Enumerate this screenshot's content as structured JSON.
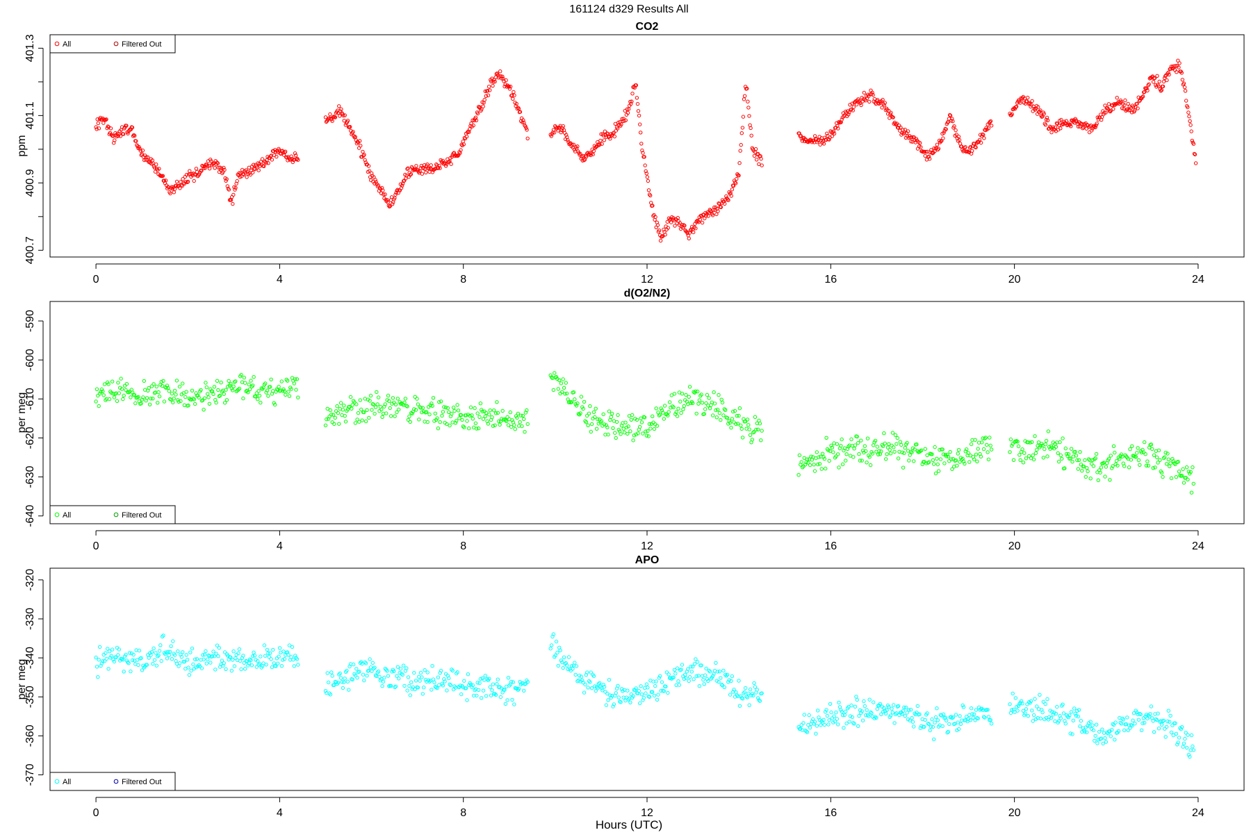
{
  "figure": {
    "title": "161124   d329   Results All",
    "xlabel": "Hours (UTC)",
    "x_ticks": [
      "0",
      "4",
      "8",
      "12",
      "16",
      "20",
      "24"
    ]
  },
  "chart_data": [
    {
      "type": "scatter",
      "title": "CO2",
      "ylabel": "ppm",
      "xlim": [
        -1,
        25
      ],
      "ylim": [
        400.68,
        401.34
      ],
      "y_ticks": [
        400.7,
        400.9,
        401.1,
        401.3
      ],
      "y_tick_labels": [
        "400.7",
        "400.9",
        "401.1",
        "401.3"
      ],
      "y_minor_ticks": [
        400.8,
        401.0,
        401.2
      ],
      "marker_color": "#ff0000",
      "legend_position": "top-left",
      "legend": [
        {
          "label": "All",
          "color": "#ff0000"
        },
        {
          "label": "Filtered Out",
          "color": "#b00000"
        }
      ],
      "series": [
        {
          "segment": "0-4.4 h",
          "x": [
            0.0,
            0.2,
            0.4,
            0.6,
            0.8,
            1.0,
            1.2,
            1.4,
            1.6,
            1.8,
            2.0,
            2.2,
            2.4,
            2.6,
            2.8,
            2.95,
            3.1,
            3.4,
            3.7,
            4.0,
            4.2,
            4.4
          ],
          "y": [
            401.07,
            401.09,
            401.03,
            401.06,
            401.05,
            400.98,
            400.96,
            400.93,
            400.88,
            400.89,
            400.92,
            400.93,
            400.95,
            400.96,
            400.93,
            400.84,
            400.92,
            400.94,
            400.96,
            401.0,
            400.97,
            400.97
          ]
        },
        {
          "segment": "5.0-9.4 h",
          "x": [
            5.0,
            5.3,
            5.5,
            5.8,
            6.0,
            6.2,
            6.4,
            6.6,
            6.8,
            7.0,
            7.3,
            7.6,
            7.9,
            8.1,
            8.4,
            8.6,
            8.8,
            9.0,
            9.2,
            9.4
          ],
          "y": [
            401.08,
            401.11,
            401.07,
            400.99,
            400.92,
            400.88,
            400.84,
            400.88,
            400.93,
            400.94,
            400.94,
            400.96,
            400.99,
            401.05,
            401.13,
            401.2,
            401.22,
            401.18,
            401.12,
            401.04
          ]
        },
        {
          "segment": "9.9-14.5 h",
          "x": [
            9.9,
            10.1,
            10.3,
            10.6,
            10.8,
            11.0,
            11.2,
            11.4,
            11.6,
            11.75,
            11.9,
            12.1,
            12.3,
            12.5,
            12.7,
            12.9,
            13.2,
            13.5,
            13.8,
            14.0,
            14.15,
            14.3,
            14.5
          ],
          "y": [
            401.04,
            401.07,
            401.02,
            400.98,
            400.99,
            401.03,
            401.04,
            401.07,
            401.12,
            401.2,
            401.0,
            400.83,
            400.74,
            400.79,
            400.78,
            400.75,
            400.8,
            400.82,
            400.86,
            400.93,
            401.2,
            401.0,
            400.96
          ]
        },
        {
          "segment": "15.3-19.5 h",
          "x": [
            15.3,
            15.6,
            16.0,
            16.3,
            16.6,
            16.9,
            17.2,
            17.5,
            17.8,
            18.1,
            18.4,
            18.6,
            18.8,
            19.0,
            19.3,
            19.5
          ],
          "y": [
            401.04,
            401.02,
            401.04,
            401.1,
            401.14,
            401.16,
            401.12,
            401.06,
            401.03,
            400.98,
            401.02,
            401.1,
            401.02,
            400.99,
            401.04,
            401.08
          ]
        },
        {
          "segment": "19.9-23.9 h",
          "x": [
            19.9,
            20.2,
            20.5,
            20.8,
            21.0,
            21.3,
            21.6,
            21.8,
            22.0,
            22.3,
            22.6,
            22.8,
            23.0,
            23.2,
            23.4,
            23.6,
            23.8,
            23.95
          ],
          "y": [
            401.11,
            401.15,
            401.12,
            401.06,
            401.07,
            401.08,
            401.06,
            401.08,
            401.12,
            401.14,
            401.12,
            401.16,
            401.22,
            401.18,
            401.24,
            401.25,
            401.1,
            400.96
          ]
        }
      ]
    },
    {
      "type": "scatter",
      "title": "d(O2/N2)",
      "ylabel": "per meg",
      "xlim": [
        -1,
        25
      ],
      "ylim": [
        -642,
        -585
      ],
      "y_ticks": [
        -640,
        -630,
        -620,
        -610,
        -600,
        -590
      ],
      "y_tick_labels": [
        "-640",
        "-630",
        "-620",
        "-610",
        "-600",
        "-590"
      ],
      "marker_color": "#00ff00",
      "legend_position": "bottom-left",
      "legend": [
        {
          "label": "All",
          "color": "#00ff00"
        },
        {
          "label": "Filtered Out",
          "color": "#00a000"
        }
      ],
      "series": [
        {
          "segment": "0-4.4 h",
          "x": [
            0.0,
            0.5,
            1.0,
            1.5,
            2.0,
            2.5,
            3.0,
            3.5,
            4.0,
            4.4
          ],
          "y": [
            -609,
            -608,
            -609,
            -607,
            -610,
            -609,
            -607,
            -608,
            -607,
            -608
          ]
        },
        {
          "segment": "5.0-9.4 h",
          "x": [
            5.0,
            5.5,
            6.0,
            6.5,
            7.0,
            7.5,
            8.0,
            8.5,
            9.0,
            9.4
          ],
          "y": [
            -616,
            -613,
            -611,
            -612,
            -613,
            -614,
            -615,
            -615,
            -616,
            -614
          ]
        },
        {
          "segment": "9.9-14.5 h",
          "x": [
            9.9,
            10.2,
            10.5,
            11.0,
            11.5,
            12.0,
            12.5,
            13.0,
            13.5,
            14.0,
            14.5
          ],
          "y": [
            -604,
            -608,
            -612,
            -616,
            -617,
            -617,
            -612,
            -610,
            -612,
            -616,
            -618
          ]
        },
        {
          "segment": "15.3-19.5 h",
          "x": [
            15.3,
            15.8,
            16.3,
            16.8,
            17.3,
            17.8,
            18.3,
            18.8,
            19.3,
            19.5
          ],
          "y": [
            -627,
            -625,
            -623,
            -623,
            -622,
            -624,
            -626,
            -625,
            -622,
            -624
          ]
        },
        {
          "segment": "19.9-23.9 h",
          "x": [
            19.9,
            20.4,
            20.9,
            21.4,
            21.9,
            22.4,
            22.9,
            23.4,
            23.9
          ],
          "y": [
            -622,
            -623,
            -622,
            -626,
            -628,
            -625,
            -624,
            -627,
            -631
          ]
        }
      ]
    },
    {
      "type": "scatter",
      "title": "APO",
      "ylabel": "per meg",
      "xlim": [
        -1,
        25
      ],
      "ylim": [
        -374,
        -317
      ],
      "y_ticks": [
        -370,
        -360,
        -350,
        -340,
        -330,
        -320
      ],
      "y_tick_labels": [
        "-370",
        "-360",
        "-350",
        "-340",
        "-330",
        "-320"
      ],
      "marker_color": "#00ffff",
      "legend_position": "bottom-left",
      "legend": [
        {
          "label": "All",
          "color": "#00ffff"
        },
        {
          "label": "Filtered Out",
          "color": "#0000a0"
        }
      ],
      "series": [
        {
          "segment": "0-4.4 h",
          "x": [
            0.0,
            0.5,
            1.0,
            1.5,
            2.0,
            2.5,
            3.0,
            3.5,
            4.0,
            4.4
          ],
          "y": [
            -341,
            -340,
            -341,
            -339,
            -341,
            -340,
            -340,
            -341,
            -340,
            -340
          ]
        },
        {
          "segment": "5.0-9.4 h",
          "x": [
            5.0,
            5.5,
            6.0,
            6.5,
            7.0,
            7.5,
            8.0,
            8.5,
            9.0,
            9.4
          ],
          "y": [
            -347,
            -345,
            -344,
            -345,
            -346,
            -346,
            -347,
            -347,
            -348,
            -347
          ]
        },
        {
          "segment": "9.9-14.5 h",
          "x": [
            9.9,
            10.2,
            10.5,
            11.0,
            11.5,
            12.0,
            12.5,
            13.0,
            13.5,
            14.0,
            14.5
          ],
          "y": [
            -337,
            -341,
            -345,
            -348,
            -350,
            -349,
            -345,
            -343,
            -345,
            -348,
            -350
          ]
        },
        {
          "segment": "15.3-19.5 h",
          "x": [
            15.3,
            15.8,
            16.3,
            16.8,
            17.3,
            17.8,
            18.3,
            18.8,
            19.3,
            19.5
          ],
          "y": [
            -358,
            -356,
            -354,
            -354,
            -353,
            -355,
            -357,
            -356,
            -354,
            -356
          ]
        },
        {
          "segment": "19.9-23.9 h",
          "x": [
            19.9,
            20.4,
            20.9,
            21.4,
            21.9,
            22.4,
            22.9,
            23.4,
            23.9
          ],
          "y": [
            -353,
            -354,
            -353,
            -357,
            -360,
            -357,
            -355,
            -358,
            -363
          ]
        }
      ]
    }
  ]
}
